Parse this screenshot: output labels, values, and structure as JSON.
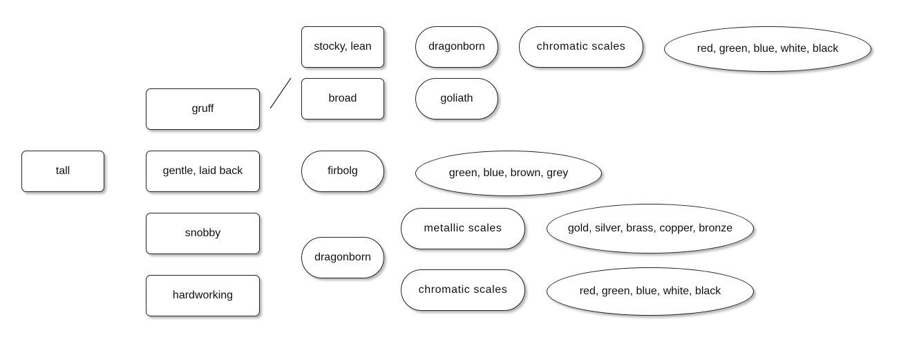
{
  "root": {
    "label": "tall"
  },
  "temperaments": [
    {
      "label": "gruff"
    },
    {
      "label": "gentle, laid back"
    },
    {
      "label": "snobby"
    },
    {
      "label": "hardworking"
    }
  ],
  "builds": [
    {
      "label": "stocky, lean"
    },
    {
      "label": "broad"
    }
  ],
  "races": {
    "top_dragonborn": "dragonborn",
    "goliath": "goliath",
    "firbolg": "firbolg",
    "bottom_dragonborn": "dragonborn"
  },
  "scales": {
    "top_chromatic": "chromatic scales",
    "metallic": "metallic scales",
    "bottom_chromatic": "chromatic scales"
  },
  "colors": {
    "top_chromatic_colors": "red, green, blue, white, black",
    "firbolg_colors": "green, blue, brown, grey",
    "metallic_colors": "gold, silver, brass, copper, bronze",
    "bottom_chromatic_colors": "red, green, blue, white, black"
  },
  "style": {
    "border": "#222222",
    "fill": "#ffffff",
    "text": "#111111"
  }
}
